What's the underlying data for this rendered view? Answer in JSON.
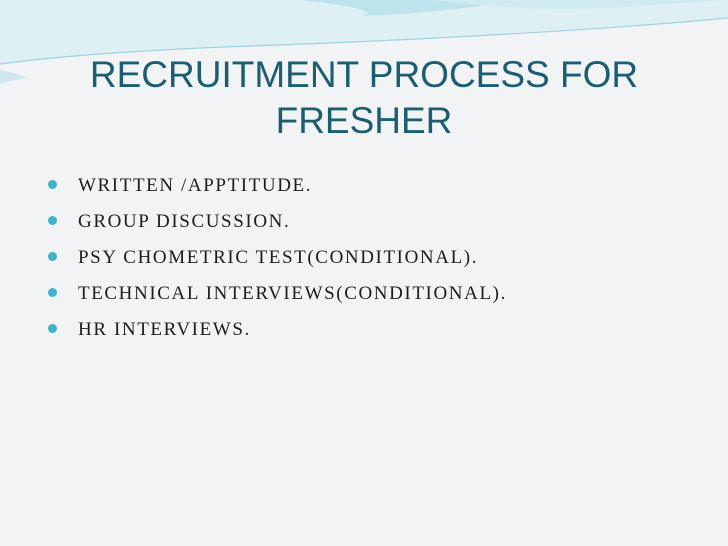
{
  "slide": {
    "title": "RECRUITMENT PROCESS FOR FRESHER",
    "bullets": [
      "WRITTEN /APPTITUDE.",
      "GROUP DISCUSSION.",
      "PSY CHOMETRIC TEST(CONDITIONAL).",
      "TECHNICAL INTERVIEWS(CONDITIONAL).",
      "HR INTERVIEWS."
    ]
  },
  "colors": {
    "title": "#1b5e72",
    "bullet_marker": "#3fb3c9",
    "background": "#f1f3f4",
    "wave_light": "#d8eef3",
    "wave_accent": "#9fd3df"
  }
}
